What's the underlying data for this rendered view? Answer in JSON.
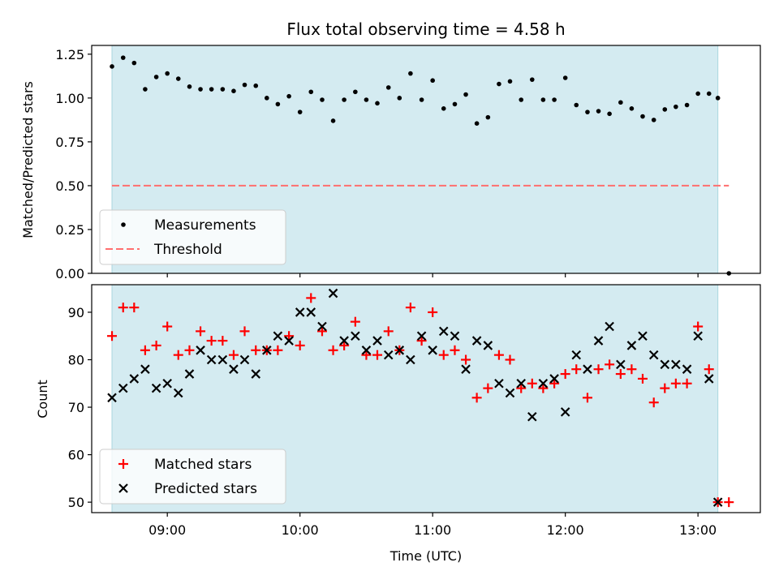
{
  "colors": {
    "span_fill": "#d4ebf1",
    "span_edge": "#a9d6df",
    "measurement": "#000000",
    "threshold": "#ff6f6f",
    "matched": "#ff0000",
    "predicted": "#000000"
  },
  "chart_data": [
    {
      "type": "scatter",
      "title": "Flux total observing time = 4.58 h",
      "xlabel": "",
      "ylabel": "Matched/Predicted stars",
      "xlim": [
        8.43,
        13.47
      ],
      "ylim": [
        0,
        1.3
      ],
      "yticks": [
        0,
        0.25,
        0.5,
        0.75,
        1.0,
        1.25
      ],
      "ytick_labels": [
        "0.00",
        "0.25",
        "0.50",
        "0.75",
        "1.00",
        "1.25"
      ],
      "observing_span": [
        8.583,
        13.15
      ],
      "threshold": {
        "value": 0.5,
        "x_range": [
          8.583,
          13.233
        ]
      },
      "legend": {
        "placement": "lower-left",
        "entries": [
          "Measurements",
          "Threshold"
        ]
      },
      "series": [
        {
          "name": "Measurements",
          "x": [
            8.583,
            8.667,
            8.75,
            8.833,
            8.917,
            9.0,
            9.083,
            9.167,
            9.25,
            9.333,
            9.417,
            9.5,
            9.583,
            9.667,
            9.75,
            9.833,
            9.917,
            10.0,
            10.083,
            10.167,
            10.25,
            10.333,
            10.417,
            10.5,
            10.583,
            10.667,
            10.75,
            10.833,
            10.917,
            11.0,
            11.083,
            11.167,
            11.25,
            11.333,
            11.417,
            11.5,
            11.583,
            11.667,
            11.75,
            11.833,
            11.917,
            12.0,
            12.083,
            12.167,
            12.25,
            12.333,
            12.417,
            12.5,
            12.583,
            12.667,
            12.75,
            12.833,
            12.917,
            13.0,
            13.083,
            13.15,
            13.233
          ],
          "y": [
            1.18,
            1.23,
            1.2,
            1.05,
            1.12,
            1.14,
            1.11,
            1.065,
            1.05,
            1.05,
            1.05,
            1.04,
            1.075,
            1.07,
            1.0,
            0.965,
            1.01,
            0.92,
            1.035,
            0.99,
            0.87,
            0.99,
            1.035,
            0.99,
            0.97,
            1.06,
            1.0,
            1.14,
            0.99,
            1.1,
            0.94,
            0.965,
            1.02,
            0.855,
            0.89,
            1.08,
            1.095,
            0.99,
            1.105,
            0.99,
            0.99,
            1.115,
            0.96,
            0.92,
            0.925,
            0.91,
            0.975,
            0.94,
            0.895,
            0.875,
            0.935,
            0.95,
            0.96,
            1.025,
            1.025,
            1.0,
            0.0
          ]
        }
      ]
    },
    {
      "type": "scatter",
      "title": "",
      "xlabel": "Time (UTC)",
      "ylabel": "Count",
      "xlim": [
        8.43,
        13.47
      ],
      "ylim": [
        47.8,
        95.8
      ],
      "yticks": [
        50,
        60,
        70,
        80,
        90
      ],
      "ytick_labels": [
        "50",
        "60",
        "70",
        "80",
        "90"
      ],
      "xticks": [
        9,
        10,
        11,
        12,
        13
      ],
      "xtick_labels": [
        "09:00",
        "10:00",
        "11:00",
        "12:00",
        "13:00"
      ],
      "observing_span": [
        8.583,
        13.15
      ],
      "legend": {
        "placement": "lower-left",
        "entries": [
          "Matched stars",
          "Predicted stars"
        ]
      },
      "series": [
        {
          "name": "Matched stars",
          "marker": "plus",
          "x": [
            8.583,
            8.667,
            8.75,
            8.833,
            8.917,
            9.0,
            9.083,
            9.167,
            9.25,
            9.333,
            9.417,
            9.5,
            9.583,
            9.667,
            9.75,
            9.833,
            9.917,
            10.0,
            10.083,
            10.167,
            10.25,
            10.333,
            10.417,
            10.5,
            10.583,
            10.667,
            10.75,
            10.833,
            10.917,
            11.0,
            11.083,
            11.167,
            11.25,
            11.333,
            11.417,
            11.5,
            11.583,
            11.667,
            11.75,
            11.833,
            11.917,
            12.0,
            12.083,
            12.167,
            12.25,
            12.333,
            12.417,
            12.5,
            12.583,
            12.667,
            12.75,
            12.833,
            12.917,
            13.0,
            13.083,
            13.15,
            13.233
          ],
          "y": [
            85,
            91,
            91,
            82,
            83,
            87,
            81,
            82,
            86,
            84,
            84,
            81,
            86,
            82,
            82,
            82,
            85,
            83,
            93,
            86,
            82,
            83,
            88,
            81,
            81,
            86,
            82,
            91,
            84,
            90,
            81,
            82,
            80,
            72,
            74,
            81,
            80,
            74,
            75,
            74,
            75,
            77,
            78,
            72,
            78,
            79,
            77,
            78,
            76,
            71,
            74,
            75,
            75,
            87,
            78,
            50,
            50
          ]
        },
        {
          "name": "Predicted stars",
          "marker": "x",
          "x": [
            8.583,
            8.667,
            8.75,
            8.833,
            8.917,
            9.0,
            9.083,
            9.167,
            9.25,
            9.333,
            9.417,
            9.5,
            9.583,
            9.667,
            9.75,
            9.833,
            9.917,
            10.0,
            10.083,
            10.167,
            10.25,
            10.333,
            10.417,
            10.5,
            10.583,
            10.667,
            10.75,
            10.833,
            10.917,
            11.0,
            11.083,
            11.167,
            11.25,
            11.333,
            11.417,
            11.5,
            11.583,
            11.667,
            11.75,
            11.833,
            11.917,
            12.0,
            12.083,
            12.167,
            12.25,
            12.333,
            12.417,
            12.5,
            12.583,
            12.667,
            12.75,
            12.833,
            12.917,
            13.0,
            13.083,
            13.15
          ],
          "y": [
            72,
            74,
            76,
            78,
            74,
            75,
            73,
            77,
            82,
            80,
            80,
            78,
            80,
            77,
            82,
            85,
            84,
            90,
            90,
            87,
            94,
            84,
            85,
            82,
            84,
            81,
            82,
            80,
            85,
            82,
            86,
            85,
            78,
            84,
            83,
            75,
            73,
            75,
            68,
            75,
            76,
            69,
            81,
            78,
            84,
            87,
            79,
            83,
            85,
            81,
            79,
            79,
            78,
            85,
            76,
            50
          ]
        }
      ]
    }
  ]
}
